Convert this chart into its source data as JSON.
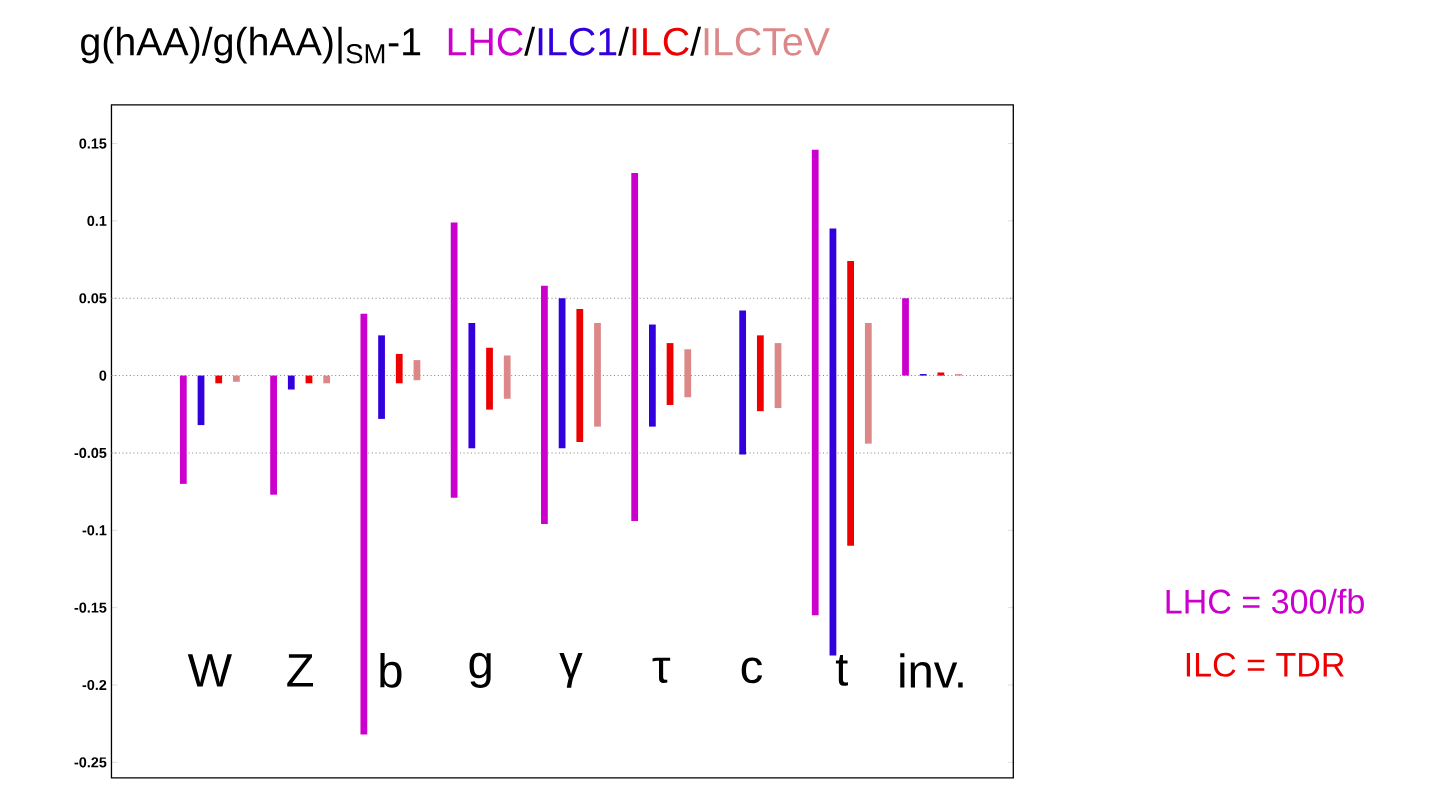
{
  "chart_data": {
    "type": "bar",
    "title": "g(hAA)/g(hAA)|$_{SM}$-1",
    "categories": [
      "W",
      "Z",
      "b",
      "g",
      "γ",
      "τ",
      "c",
      "t",
      "inv."
    ],
    "series": [
      {
        "name": "LHC",
        "color": "#cc00cc",
        "base": [
          -0.07,
          -0.077,
          -0.232,
          -0.079,
          -0.096,
          -0.094,
          null,
          -0.155,
          0
        ],
        "values": [
          0.07,
          0.077,
          0.272,
          0.178,
          0.154,
          0.225,
          null,
          0.301,
          0.05
        ]
      },
      {
        "name": "ILC1",
        "color": "#3300dd",
        "base": [
          -0.032,
          -0.009,
          -0.028,
          -0.047,
          -0.047,
          -0.033,
          -0.051,
          -0.181,
          0
        ],
        "values": [
          0.032,
          0.009,
          0.054,
          0.081,
          0.097,
          0.066,
          0.093,
          0.276,
          0.001
        ]
      },
      {
        "name": "ILC",
        "color": "#ee0000",
        "base": [
          -0.005,
          -0.005,
          -0.005,
          -0.022,
          -0.043,
          -0.019,
          -0.023,
          -0.11,
          0
        ],
        "values": [
          0.005,
          0.005,
          0.019,
          0.04,
          0.086,
          0.04,
          0.049,
          0.184,
          0.002
        ]
      },
      {
        "name": "ILCTeV",
        "color": "#dd8888",
        "base": [
          -0.004,
          -0.005,
          -0.003,
          -0.015,
          -0.033,
          -0.014,
          -0.021,
          -0.044,
          0
        ],
        "values": [
          0.004,
          0.005,
          0.013,
          0.028,
          0.067,
          0.031,
          0.042,
          0.078,
          0.001
        ]
      }
    ],
    "ylim": [
      -0.26,
      0.175
    ],
    "yticks": [
      -0.25,
      -0.2,
      -0.15,
      -0.1,
      -0.05,
      0,
      0.05,
      0.1,
      0.15
    ],
    "ref_lines": [
      {
        "axis": "y",
        "value": 0.05,
        "line_style": "dotted",
        "color": "#888888"
      },
      {
        "axis": "y",
        "value": 0,
        "line_style": "dotted",
        "color": "#888888"
      },
      {
        "axis": "y",
        "value": -0.05,
        "line_style": "dotted",
        "color": "#888888"
      }
    ],
    "legend": "top",
    "annotations": [
      "LHC = 300/fb",
      "ILC = TDR",
      "/",
      "/",
      "/"
    ]
  }
}
